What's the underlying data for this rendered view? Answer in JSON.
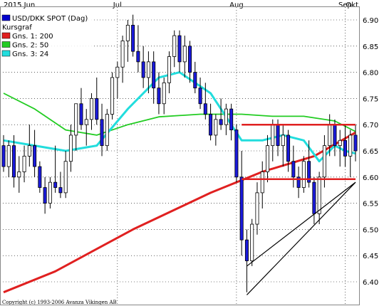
{
  "chart_data": {
    "type": "candlestick",
    "title": "USD/DKK SPOT (Dag)",
    "subtitle": "Kursgraf",
    "x_ticks": [
      "2015 Jun",
      "Jul",
      "Aug",
      "Sep",
      "Okt"
    ],
    "y_ticks": [
      "6.90",
      "6.85",
      "6.80",
      "6.75",
      "6.70",
      "6.65",
      "6.60",
      "6.55",
      "6.50",
      "6.45",
      "6.40"
    ],
    "ylim": [
      6.37,
      6.915
    ],
    "grid": true,
    "legend_position": "top-left",
    "copyright": "Copyright (c) 1993-2006 Avanza Vikingen AB",
    "candles": [
      [
        6.66,
        6.68,
        6.61,
        6.62
      ],
      [
        6.62,
        6.67,
        6.6,
        6.66
      ],
      [
        6.66,
        6.68,
        6.58,
        6.6
      ],
      [
        6.6,
        6.64,
        6.57,
        6.61
      ],
      [
        6.61,
        6.66,
        6.59,
        6.64
      ],
      [
        6.64,
        6.7,
        6.62,
        6.66
      ],
      [
        6.66,
        6.69,
        6.6,
        6.62
      ],
      [
        6.62,
        6.63,
        6.57,
        6.58
      ],
      [
        6.58,
        6.6,
        6.53,
        6.55
      ],
      [
        6.55,
        6.6,
        6.54,
        6.59
      ],
      [
        6.59,
        6.66,
        6.57,
        6.58
      ],
      [
        6.58,
        6.61,
        6.56,
        6.57
      ],
      [
        6.57,
        6.65,
        6.56,
        6.63
      ],
      [
        6.63,
        6.7,
        6.61,
        6.68
      ],
      [
        6.68,
        6.74,
        6.65,
        6.74
      ],
      [
        6.74,
        6.77,
        6.69,
        6.7
      ],
      [
        6.7,
        6.73,
        6.66,
        6.71
      ],
      [
        6.71,
        6.76,
        6.69,
        6.75
      ],
      [
        6.75,
        6.79,
        6.7,
        6.71
      ],
      [
        6.71,
        6.74,
        6.64,
        6.66
      ],
      [
        6.66,
        6.73,
        6.65,
        6.72
      ],
      [
        6.72,
        6.8,
        6.71,
        6.79
      ],
      [
        6.79,
        6.82,
        6.75,
        6.81
      ],
      [
        6.81,
        6.87,
        6.78,
        6.86
      ],
      [
        6.86,
        6.9,
        6.82,
        6.89
      ],
      [
        6.89,
        6.91,
        6.83,
        6.84
      ],
      [
        6.84,
        6.89,
        6.8,
        6.82
      ],
      [
        6.82,
        6.85,
        6.77,
        6.79
      ],
      [
        6.79,
        6.84,
        6.76,
        6.82
      ],
      [
        6.82,
        6.84,
        6.74,
        6.77
      ],
      [
        6.77,
        6.8,
        6.72,
        6.74
      ],
      [
        6.74,
        6.79,
        6.72,
        6.78
      ],
      [
        6.78,
        6.84,
        6.76,
        6.83
      ],
      [
        6.83,
        6.88,
        6.81,
        6.87
      ],
      [
        6.87,
        6.88,
        6.8,
        6.82
      ],
      [
        6.82,
        6.87,
        6.79,
        6.85
      ],
      [
        6.85,
        6.86,
        6.78,
        6.8
      ],
      [
        6.8,
        6.82,
        6.76,
        6.77
      ],
      [
        6.77,
        6.79,
        6.73,
        6.74
      ],
      [
        6.74,
        6.78,
        6.71,
        6.72
      ],
      [
        6.72,
        6.74,
        6.67,
        6.68
      ],
      [
        6.68,
        6.72,
        6.66,
        6.71
      ],
      [
        6.71,
        6.75,
        6.69,
        6.7
      ],
      [
        6.7,
        6.74,
        6.68,
        6.73
      ],
      [
        6.73,
        6.74,
        6.67,
        6.69
      ],
      [
        6.69,
        6.7,
        6.59,
        6.6
      ],
      [
        6.6,
        6.65,
        6.45,
        6.48
      ],
      [
        6.48,
        6.5,
        6.38,
        6.44
      ],
      [
        6.44,
        6.52,
        6.43,
        6.51
      ],
      [
        6.51,
        6.59,
        6.49,
        6.57
      ],
      [
        6.57,
        6.63,
        6.54,
        6.61
      ],
      [
        6.61,
        6.68,
        6.59,
        6.66
      ],
      [
        6.66,
        6.71,
        6.63,
        6.7
      ],
      [
        6.7,
        6.71,
        6.64,
        6.66
      ],
      [
        6.66,
        6.7,
        6.62,
        6.68
      ],
      [
        6.68,
        6.69,
        6.61,
        6.63
      ],
      [
        6.63,
        6.66,
        6.58,
        6.6
      ],
      [
        6.6,
        6.62,
        6.56,
        6.58
      ],
      [
        6.58,
        6.64,
        6.57,
        6.63
      ],
      [
        6.63,
        6.67,
        6.58,
        6.59
      ],
      [
        6.59,
        6.6,
        6.51,
        6.53
      ],
      [
        6.53,
        6.61,
        6.51,
        6.6
      ],
      [
        6.6,
        6.68,
        6.58,
        6.66
      ],
      [
        6.66,
        6.72,
        6.64,
        6.7
      ],
      [
        6.7,
        6.71,
        6.64,
        6.66
      ],
      [
        6.66,
        6.69,
        6.62,
        6.67
      ],
      [
        6.67,
        6.7,
        6.62,
        6.64
      ],
      [
        6.64,
        6.69,
        6.6,
        6.68
      ],
      [
        6.68,
        6.7,
        6.63,
        6.65
      ]
    ],
    "series": [
      {
        "name": "Gns. 1: 200",
        "color": "#e02020",
        "points": [
          [
            0,
            6.38
          ],
          [
            10,
            6.42
          ],
          [
            25,
            6.5
          ],
          [
            40,
            6.57
          ],
          [
            50,
            6.61
          ],
          [
            60,
            6.64
          ],
          [
            68,
            6.685
          ]
        ]
      },
      {
        "name": "Gns. 2: 50",
        "color": "#22cc22",
        "points": [
          [
            0,
            6.76
          ],
          [
            6,
            6.73
          ],
          [
            12,
            6.69
          ],
          [
            18,
            6.68
          ],
          [
            24,
            6.7
          ],
          [
            30,
            6.715
          ],
          [
            38,
            6.72
          ],
          [
            46,
            6.72
          ],
          [
            52,
            6.716
          ],
          [
            58,
            6.716
          ],
          [
            64,
            6.707
          ],
          [
            68,
            6.687
          ]
        ]
      },
      {
        "name": "Gns. 3: 24",
        "color": "#22dddd",
        "points": [
          [
            0,
            6.67
          ],
          [
            6,
            6.66
          ],
          [
            12,
            6.65
          ],
          [
            18,
            6.66
          ],
          [
            24,
            6.73
          ],
          [
            30,
            6.79
          ],
          [
            34,
            6.8
          ],
          [
            40,
            6.76
          ],
          [
            46,
            6.67
          ],
          [
            50,
            6.67
          ],
          [
            54,
            6.68
          ],
          [
            58,
            6.67
          ],
          [
            61,
            6.63
          ],
          [
            64,
            6.66
          ],
          [
            66,
            6.65
          ],
          [
            68,
            6.645
          ]
        ]
      }
    ],
    "lines": [
      {
        "color": "#e02020",
        "from": [
          46,
          6.7
        ],
        "to": [
          68,
          6.7
        ]
      },
      {
        "color": "#e02020",
        "from": [
          46,
          6.596
        ],
        "to": [
          68,
          6.596
        ]
      },
      {
        "color": "#000000",
        "from": [
          47,
          6.375
        ],
        "to": [
          68,
          6.59
        ]
      },
      {
        "color": "#000000",
        "from": [
          47,
          6.43
        ],
        "to": [
          68,
          6.59
        ]
      }
    ],
    "legend": [
      {
        "label": "USD/DKK SPOT (Dag)",
        "color": "#0000cc"
      },
      {
        "label": "Kursgraf",
        "color": ""
      },
      {
        "label": "Gns. 1: 200",
        "color": "#e02020"
      },
      {
        "label": "Gns. 2: 50",
        "color": "#22cc22"
      },
      {
        "label": "Gns. 3: 24",
        "color": "#22dddd"
      }
    ]
  }
}
